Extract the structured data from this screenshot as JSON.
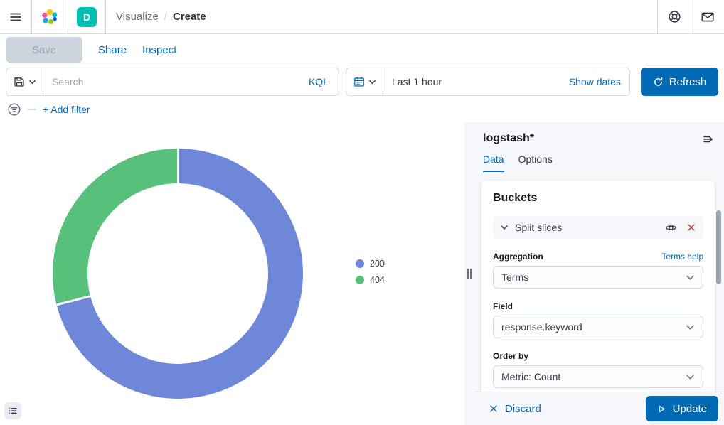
{
  "header": {
    "breadcrumbs": [
      "Visualize",
      "Create"
    ],
    "space_badge": "D"
  },
  "toolbar": {
    "save_label": "Save",
    "share_label": "Share",
    "inspect_label": "Inspect"
  },
  "query": {
    "search_placeholder": "Search",
    "kql_label": "KQL",
    "time_value": "Last 1 hour",
    "show_dates_label": "Show dates",
    "refresh_label": "Refresh"
  },
  "filters": {
    "add_filter_label": "+ Add filter"
  },
  "chart_data": {
    "type": "pie",
    "donut": true,
    "categories": [
      "200",
      "404"
    ],
    "values": [
      71,
      29
    ],
    "unit": "percent (estimated from arc angles)",
    "colors": [
      "#6F87D8",
      "#57C17B"
    ],
    "legend_position": "right",
    "start_angle_deg": 0,
    "title": ""
  },
  "panel": {
    "title": "logstash*",
    "tabs": [
      {
        "label": "Data",
        "active": true
      },
      {
        "label": "Options",
        "active": false
      }
    ],
    "buckets_title": "Buckets",
    "split_slices_label": "Split slices",
    "aggregation_label": "Aggregation",
    "terms_help_label": "Terms help",
    "aggregation_value": "Terms",
    "field_label": "Field",
    "field_value": "response.keyword",
    "order_by_label": "Order by",
    "order_by_value": "Metric: Count",
    "discard_label": "Discard",
    "update_label": "Update"
  }
}
